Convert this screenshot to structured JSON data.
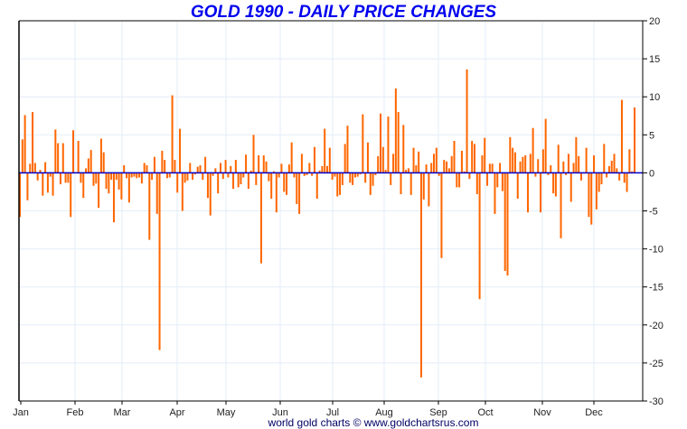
{
  "chart_data": {
    "type": "bar",
    "title": "GOLD 1990 - DAILY PRICE CHANGES",
    "credit": "world gold charts © www.goldchartsrus.com",
    "xlabel": "",
    "ylabel": "",
    "ylim": [
      -30,
      20
    ],
    "yticks": [
      20,
      15,
      10,
      5,
      0,
      -5,
      -10,
      -15,
      -20,
      -25,
      -30
    ],
    "months": [
      "Jan",
      "Feb",
      "Mar",
      "Apr",
      "May",
      "Jun",
      "Jul",
      "Aug",
      "Sep",
      "Oct",
      "Nov",
      "Dec"
    ],
    "grid": true,
    "colors": {
      "bar": "#ff6600",
      "zero_line": "#0000cc",
      "title": "#0000ee",
      "grid": "#e3eef8"
    },
    "values": [
      -5.8,
      4.4,
      7.6,
      -3.6,
      1.2,
      8.0,
      1.3,
      -1.0,
      0.4,
      -3.0,
      1.4,
      -2.6,
      -0.5,
      -3.0,
      5.7,
      3.9,
      -1.5,
      3.9,
      -1.3,
      -1.3,
      -5.8,
      5.6,
      0.1,
      4.2,
      -1.3,
      -3.3,
      0.6,
      1.9,
      3.0,
      -1.7,
      -1.4,
      -4.6,
      4.5,
      2.7,
      -2.1,
      -2.7,
      -0.9,
      -6.5,
      -0.9,
      -2.2,
      -3.5,
      1.0,
      -0.7,
      -3.9,
      -0.6,
      -0.5,
      -0.7,
      -0.6,
      -1.4,
      1.3,
      1.0,
      -8.8,
      -0.9,
      2.1,
      -5.4,
      -23.3,
      2.9,
      1.7,
      -0.7,
      -0.6,
      10.2,
      1.7,
      -2.6,
      5.8,
      -5.0,
      -1.3,
      -1.0,
      1.3,
      -0.9,
      -0.2,
      0.8,
      1.0,
      -0.9,
      2.1,
      -3.3,
      -5.6,
      -0.4,
      0.6,
      -2.7,
      1.3,
      -0.8,
      1.7,
      -0.6,
      0.9,
      -2.1,
      1.7,
      -1.9,
      -1.5,
      -0.6,
      2.4,
      -2.1,
      0.3,
      5.0,
      -1.6,
      2.3,
      -11.9,
      2.3,
      1.5,
      -1.1,
      -3.4,
      0.2,
      -5.2,
      -0.6,
      1.2,
      -2.5,
      -2.9,
      1.1,
      4.0,
      -0.6,
      -4.1,
      -5.4,
      2.5,
      -0.4,
      -0.3,
      1.3,
      -0.4,
      3.4,
      -3.4,
      0.3,
      0.9,
      5.8,
      0.9,
      3.3,
      -0.9,
      -0.5,
      -3.1,
      -2.9,
      -1.6,
      3.8,
      6.2,
      -1.3,
      -1.6,
      -0.6,
      -0.5,
      -0.2,
      7.7,
      -1.3,
      4.0,
      -2.9,
      -1.7,
      -0.3,
      2.2,
      7.8,
      3.4,
      0.4,
      7.4,
      -1.6,
      2.5,
      11.1,
      8.0,
      -2.8,
      6.3,
      0.4,
      0.6,
      -2.9,
      3.3,
      1.0,
      2.8,
      -26.9,
      -3.5,
      1.1,
      -4.4,
      1.3,
      2.5,
      3.3,
      -0.4,
      -11.2,
      1.7,
      1.5,
      0.6,
      2.2,
      4.2,
      -1.9,
      -1.9,
      2.9,
      0.2,
      13.6,
      -0.8,
      4.2,
      3.8,
      -2.8,
      -16.6,
      2.3,
      4.6,
      -1.7,
      1.2,
      1.2,
      -5.4,
      -1.9,
      1.3,
      -2.4,
      -12.9,
      -13.5,
      4.7,
      3.3,
      2.7,
      -3.4,
      1.5,
      2.1,
      2.3,
      -5.2,
      2.5,
      5.9,
      -0.5,
      1.8,
      -5.2,
      3.1,
      7.1,
      -0.3,
      1.0,
      -2.7,
      -3.1,
      3.7,
      -8.6,
      1.5,
      -0.3,
      2.5,
      -3.8,
      1.3,
      4.7,
      2.2,
      -1.0,
      -0.1,
      3.3,
      -5.8,
      -6.8,
      2.3,
      -4.8,
      -2.5,
      -1.5,
      3.8,
      -0.6,
      0.9,
      1.6,
      2.5,
      0.6,
      -1.0,
      9.6,
      -1.3,
      -2.5,
      3.1,
      0.2,
      8.6
    ]
  }
}
